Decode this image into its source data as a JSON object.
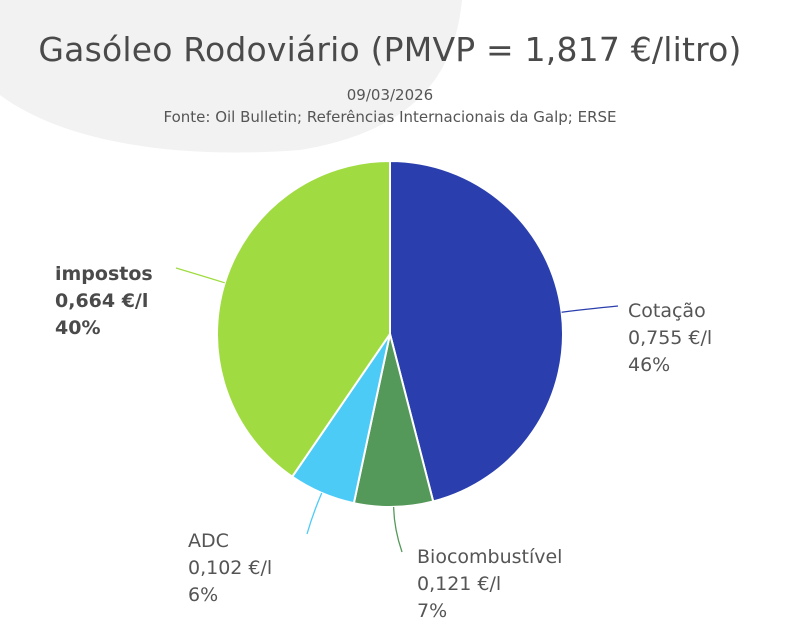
{
  "title": "Gasóleo Rodoviário (PMVP = 1,817 €/litro)",
  "date": "09/03/2026",
  "source": "Fonte: Oil Bulletin; Referências Internacionais da Galp; ERSE",
  "chart_data": {
    "type": "pie",
    "slices": [
      {
        "name": "Cotação",
        "value_text": "0,755 €/l",
        "percent_text": "46%",
        "value": 0.755,
        "color": "#2a3fad",
        "bold": false
      },
      {
        "name": "Biocombustível",
        "value_text": "0,121 €/l",
        "percent_text": "7%",
        "value": 0.121,
        "color": "#55995a",
        "bold": false
      },
      {
        "name": "ADC",
        "value_text": "0,102 €/l",
        "percent_text": "6%",
        "value": 0.102,
        "color": "#4dcbf7",
        "bold": false
      },
      {
        "name": "impostos",
        "value_text": "0,664 €/l",
        "percent_text": "40%",
        "value": 0.664,
        "color": "#a0dc41",
        "bold": true
      }
    ]
  }
}
